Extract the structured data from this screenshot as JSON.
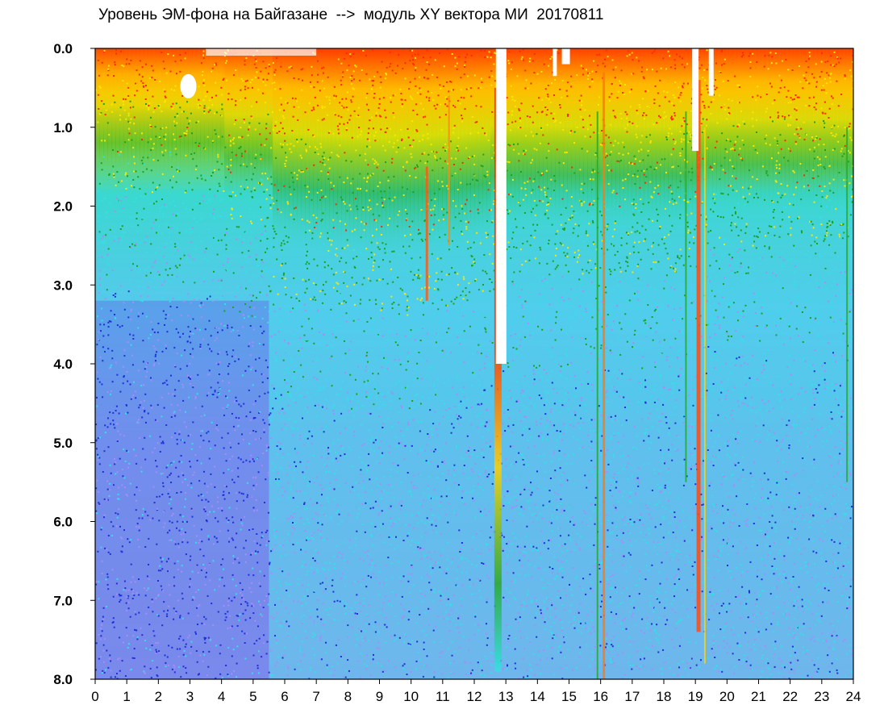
{
  "chart_data": {
    "type": "heatmap",
    "title": "Уровень ЭМ-фона на Байгазане  -->  модуль XY вектора МИ  20170811",
    "xlabel": "",
    "ylabel": "",
    "x_ticks": [
      "0",
      "1",
      "2",
      "3",
      "4",
      "5",
      "6",
      "7",
      "8",
      "9",
      "10",
      "11",
      "12",
      "13",
      "14",
      "15",
      "16",
      "17",
      "18",
      "19",
      "20",
      "21",
      "22",
      "23",
      "24"
    ],
    "y_ticks": [
      "0.0",
      "1.0",
      "2.0",
      "3.0",
      "4.0",
      "5.0",
      "6.0",
      "7.0",
      "8.0"
    ],
    "xlim": [
      0,
      24
    ],
    "ylim": [
      0,
      8
    ],
    "y_inverted": true,
    "grid": false,
    "colormap": [
      "#ff2a00",
      "#ffe600",
      "#1fa11f",
      "#33e0e6",
      "#a78df5",
      "#1f2fd9"
    ],
    "colors": {
      "red": "#ff2a00",
      "yellow": "#ffe600",
      "green": "#1fa11f",
      "cyan": "#33e0e6",
      "lavender": "#a78df5",
      "blue": "#1f2fd9"
    }
  }
}
